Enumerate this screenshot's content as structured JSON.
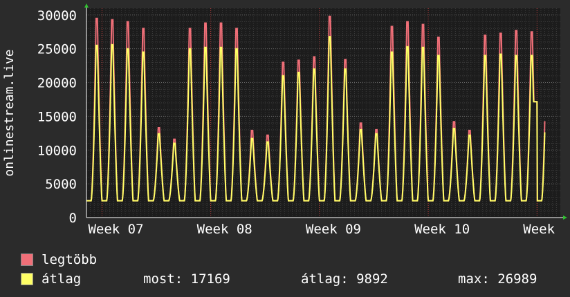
{
  "chart_data": {
    "type": "area",
    "ylabel": "onlinestream.live",
    "y_ticks": [
      0,
      5000,
      10000,
      15000,
      20000,
      25000,
      30000
    ],
    "ylim": [
      0,
      31000
    ],
    "x_ticks": [
      "Week 07",
      "Week 08",
      "Week 09",
      "Week 10",
      "Week"
    ],
    "x_tick_days": [
      1,
      8,
      15,
      22,
      29
    ],
    "xlim": [
      0,
      30.5
    ],
    "grid": true,
    "colors": {
      "background": "#2b2b2b",
      "plot": "#1c1c1c",
      "grid": "#5a5a5a",
      "legtobb": "#f06f78",
      "atlag": "#ffff66"
    },
    "series": [
      {
        "name": "legtöbb",
        "color": "#f06f78",
        "daily_peaks": [
          29500,
          29300,
          29000,
          28000,
          13300,
          11600,
          28000,
          28800,
          28800,
          28000,
          12900,
          12200,
          23000,
          23300,
          23800,
          29800,
          23400,
          14000,
          13000,
          28300,
          29000,
          28600,
          26700,
          14200,
          12900,
          27000,
          27300,
          27700,
          27500
        ]
      },
      {
        "name": "átlag",
        "color": "#ffff66",
        "daily_peaks": [
          25500,
          25600,
          25000,
          24500,
          12400,
          11000,
          25000,
          25200,
          25200,
          25000,
          11700,
          11200,
          21000,
          21500,
          22000,
          26800,
          22000,
          13000,
          12400,
          24500,
          25300,
          25200,
          24000,
          13200,
          12200,
          24000,
          24200,
          24000,
          24000
        ]
      }
    ],
    "daily_low": 2500,
    "end_value": 17169
  },
  "legend": {
    "items": [
      {
        "label": "legtöbb",
        "color": "#f06f78"
      },
      {
        "label": "átlag",
        "color": "#ffff66"
      }
    ],
    "stats": {
      "now": "most: 17169",
      "avg": "átlag: 9892",
      "max": "max: 26989"
    }
  }
}
